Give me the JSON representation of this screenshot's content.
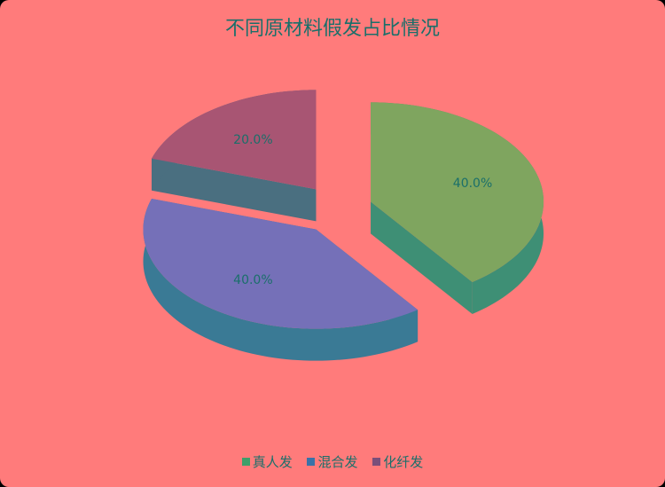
{
  "chart_data": {
    "type": "pie",
    "style": "3d-exploded",
    "title": "不同原材料假发占比情况",
    "categories": [
      "真人发",
      "混合发",
      "化纤发"
    ],
    "values": [
      40.0,
      40.0,
      20.0
    ],
    "labels": [
      "40.0%",
      "40.0%",
      "20.0%"
    ],
    "colors": [
      "#7fa55f",
      "#7570b8",
      "#a85573"
    ],
    "side_colors": [
      "#3e8f75",
      "#3a7a95",
      "#4a6f80"
    ],
    "legend_position": "bottom"
  },
  "colors": {
    "background": "#ff7b7b",
    "text": "#1a6f6a"
  }
}
